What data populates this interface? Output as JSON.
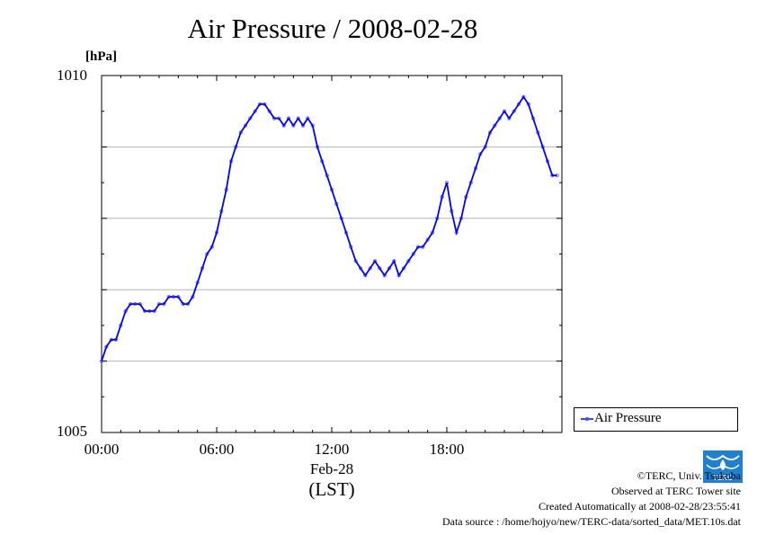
{
  "chart_data": {
    "type": "line",
    "title": "Air Pressure / 2008-02-28",
    "ylabel": "[hPa]",
    "ylim": [
      1005,
      1010
    ],
    "xlim": [
      0,
      24
    ],
    "x_ticks": [
      "00:00",
      "06:00",
      "12:00",
      "18:00"
    ],
    "x_date_label": "Feb-28",
    "xlabel": "(LST)",
    "y_tick_labels": [
      "1010",
      "1005"
    ],
    "grid": true,
    "legend_position": "bottom-right",
    "series": [
      {
        "name": "Air Pressure",
        "color": "#0000ff",
        "x": [
          0.0,
          0.25,
          0.5,
          0.75,
          1.0,
          1.25,
          1.5,
          1.75,
          2.0,
          2.25,
          2.5,
          2.75,
          3.0,
          3.25,
          3.5,
          3.75,
          4.0,
          4.25,
          4.5,
          4.75,
          5.0,
          5.25,
          5.5,
          5.75,
          6.0,
          6.25,
          6.5,
          6.75,
          7.0,
          7.25,
          7.5,
          7.75,
          8.0,
          8.25,
          8.5,
          8.75,
          9.0,
          9.25,
          9.5,
          9.75,
          10.0,
          10.25,
          10.5,
          10.75,
          11.0,
          11.25,
          11.5,
          11.75,
          12.0,
          12.25,
          12.5,
          12.75,
          13.0,
          13.25,
          13.5,
          13.75,
          14.0,
          14.25,
          14.5,
          14.75,
          15.0,
          15.25,
          15.5,
          15.75,
          16.0,
          16.25,
          16.5,
          16.75,
          17.0,
          17.25,
          17.5,
          17.75,
          18.0,
          18.25,
          18.5,
          18.75,
          19.0,
          19.25,
          19.5,
          19.75,
          20.0,
          20.25,
          20.5,
          20.75,
          21.0,
          21.25,
          21.5,
          21.75,
          22.0,
          22.25,
          22.5,
          22.75,
          23.0,
          23.25,
          23.5,
          23.75
        ],
        "y": [
          1006.0,
          1006.2,
          1006.3,
          1006.3,
          1006.5,
          1006.7,
          1006.8,
          1006.8,
          1006.8,
          1006.7,
          1006.7,
          1006.7,
          1006.8,
          1006.8,
          1006.9,
          1006.9,
          1006.9,
          1006.8,
          1006.8,
          1006.9,
          1007.1,
          1007.3,
          1007.5,
          1007.6,
          1007.8,
          1008.1,
          1008.4,
          1008.8,
          1009.0,
          1009.2,
          1009.3,
          1009.4,
          1009.5,
          1009.6,
          1009.6,
          1009.5,
          1009.4,
          1009.4,
          1009.3,
          1009.4,
          1009.3,
          1009.4,
          1009.3,
          1009.4,
          1009.3,
          1009.0,
          1008.8,
          1008.6,
          1008.4,
          1008.2,
          1008.0,
          1007.8,
          1007.6,
          1007.4,
          1007.3,
          1007.2,
          1007.3,
          1007.4,
          1007.3,
          1007.2,
          1007.3,
          1007.4,
          1007.2,
          1007.3,
          1007.4,
          1007.5,
          1007.6,
          1007.6,
          1007.7,
          1007.8,
          1008.0,
          1008.3,
          1008.5,
          1008.1,
          1007.8,
          1008.0,
          1008.3,
          1008.5,
          1008.7,
          1008.9,
          1009.0,
          1009.2,
          1009.3,
          1009.4,
          1009.5,
          1009.4,
          1009.5,
          1009.6,
          1009.7,
          1009.6,
          1009.4,
          1009.2,
          1009.0,
          1008.8,
          1008.6,
          1008.6
        ]
      }
    ]
  },
  "footer": {
    "credit": "©TERC, Univ. Tsukuba",
    "observed": "Observed at TERC Tower site",
    "created": "Created Automatically at 2008-02-28/23:55:41",
    "source": "Data source : /home/hojyo/new/TERC-data/sorted_data/MET.10s.dat",
    "logo_text": "TERC"
  },
  "colors": {
    "series": "#0000ff",
    "marker": "#5a5aff",
    "grid": "#b4b4b4",
    "logo": "#1f7fd0"
  }
}
